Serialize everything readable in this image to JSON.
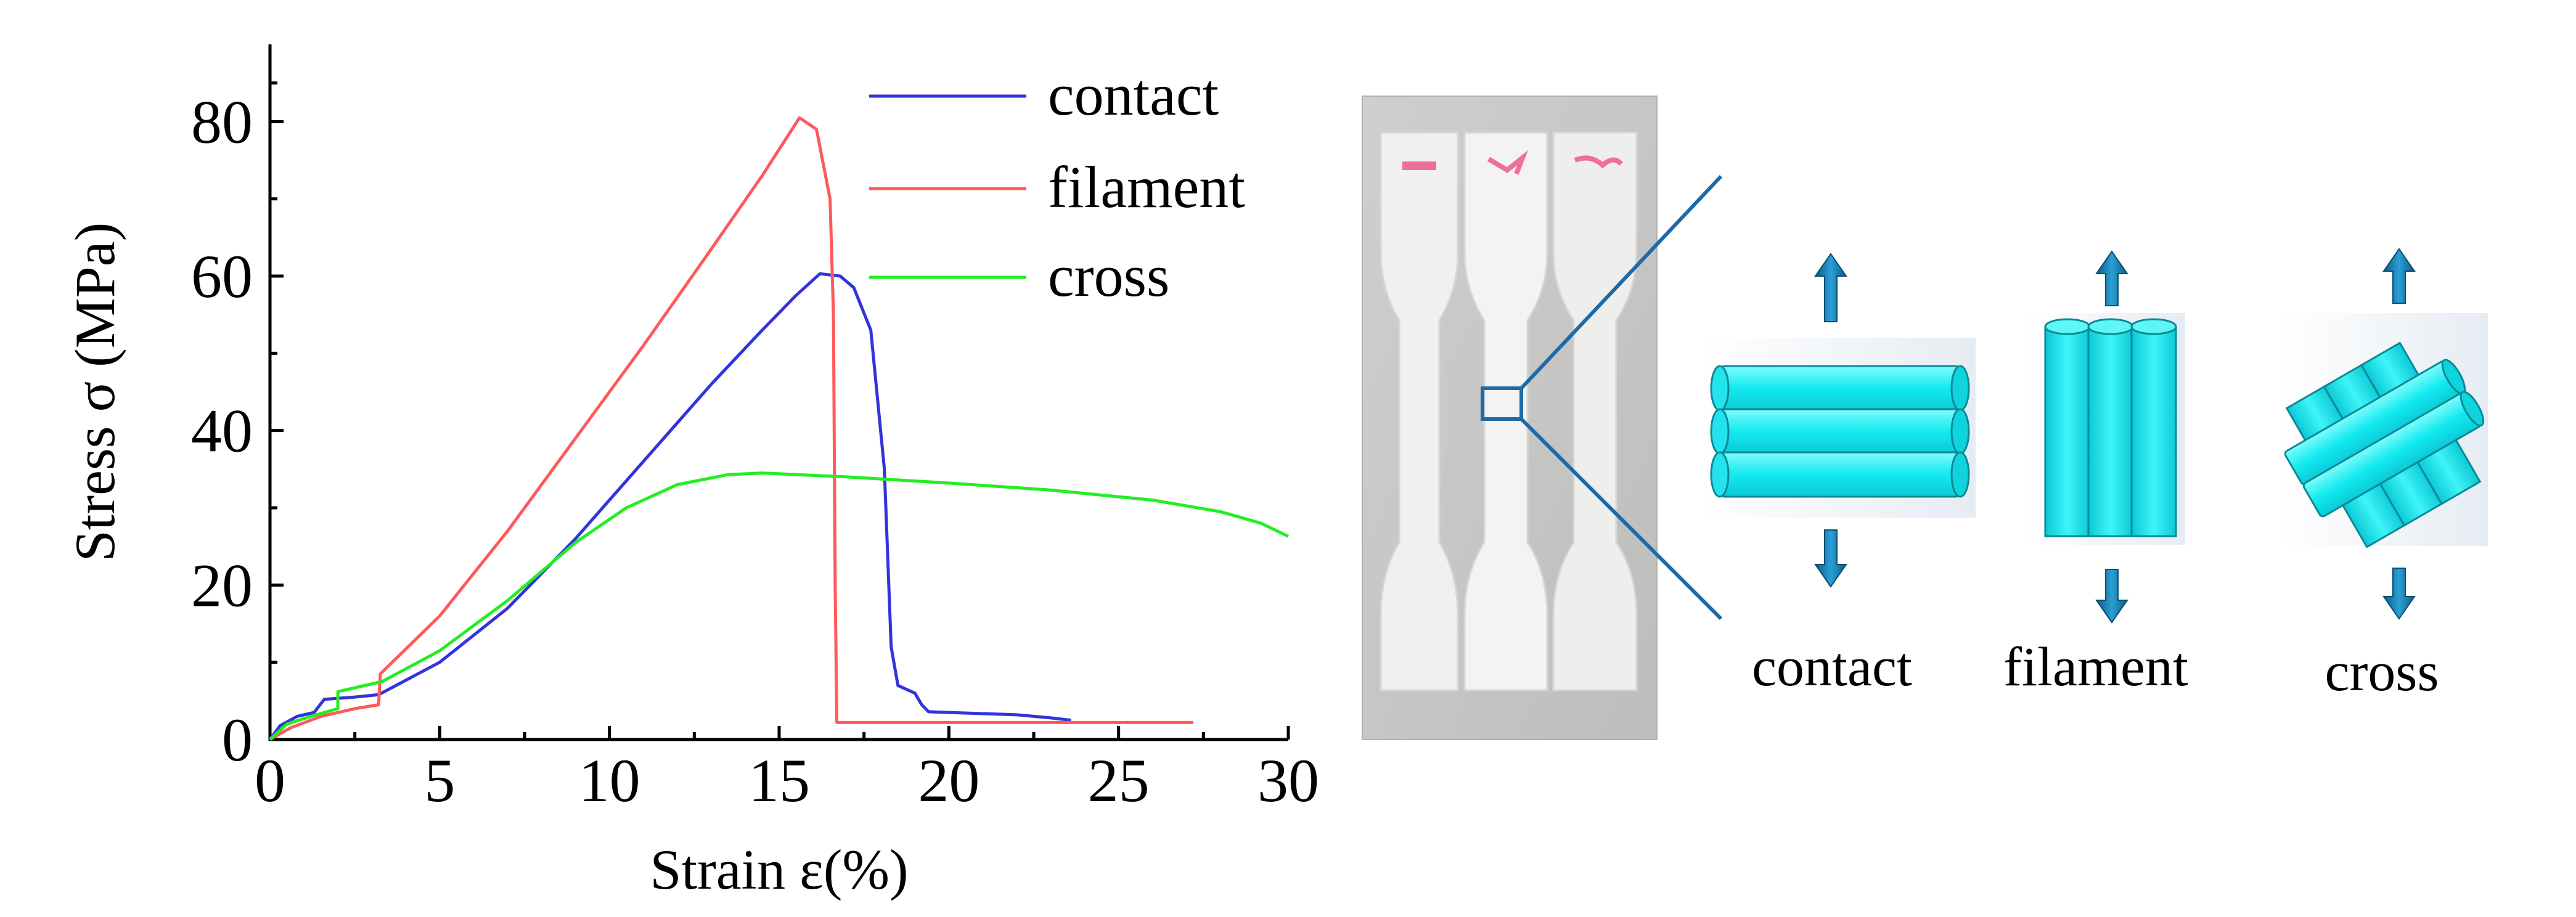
{
  "chart_data": {
    "type": "line",
    "title": "",
    "xlabel": "Strain ε(%)",
    "ylabel": "Stress σ (MPa)",
    "xlim": [
      0,
      30
    ],
    "ylim": [
      0,
      90
    ],
    "xticks": [
      0,
      5,
      10,
      15,
      20,
      25,
      30
    ],
    "yticks": [
      0,
      20,
      40,
      60,
      80
    ],
    "grid": false,
    "legend_position": "top-right",
    "series": [
      {
        "name": "contact",
        "color": "#3333dd",
        "points": [
          [
            0,
            0
          ],
          [
            0.3,
            1.8
          ],
          [
            0.8,
            3
          ],
          [
            1.3,
            3.5
          ],
          [
            1.6,
            5.2
          ],
          [
            2.5,
            5.5
          ],
          [
            3.2,
            5.8
          ],
          [
            5,
            10
          ],
          [
            7,
            17
          ],
          [
            9,
            26
          ],
          [
            11,
            36
          ],
          [
            13,
            46
          ],
          [
            14.5,
            53
          ],
          [
            15.5,
            57.5
          ],
          [
            16.2,
            60.3
          ],
          [
            16.8,
            60
          ],
          [
            17.2,
            58.5
          ],
          [
            17.7,
            53
          ],
          [
            18.1,
            35
          ],
          [
            18.3,
            12
          ],
          [
            18.5,
            7
          ],
          [
            19,
            6
          ],
          [
            19.2,
            4.5
          ],
          [
            19.4,
            3.6
          ],
          [
            20,
            3.5
          ],
          [
            22,
            3.2
          ],
          [
            23,
            2.8
          ],
          [
            23.6,
            2.5
          ]
        ]
      },
      {
        "name": "filament",
        "color": "#ff5a5a",
        "points": [
          [
            0,
            0
          ],
          [
            0.6,
            1.5
          ],
          [
            1.5,
            3
          ],
          [
            2.5,
            4
          ],
          [
            3.2,
            4.5
          ],
          [
            3.25,
            8.5
          ],
          [
            5,
            16
          ],
          [
            7,
            27
          ],
          [
            9,
            39
          ],
          [
            11,
            51
          ],
          [
            13,
            63.5
          ],
          [
            14.5,
            73
          ],
          [
            15.6,
            80.5
          ],
          [
            16.1,
            79
          ],
          [
            16.5,
            70
          ],
          [
            16.6,
            55
          ],
          [
            16.65,
            20
          ],
          [
            16.7,
            2.2
          ],
          [
            20,
            2.2
          ],
          [
            25,
            2.2
          ],
          [
            27.2,
            2.2
          ]
        ]
      },
      {
        "name": "cross",
        "color": "#22ee22",
        "points": [
          [
            0,
            0
          ],
          [
            0.5,
            2
          ],
          [
            1.2,
            3
          ],
          [
            2,
            4
          ],
          [
            2,
            6.2
          ],
          [
            3.3,
            7.5
          ],
          [
            5,
            11.5
          ],
          [
            7,
            18
          ],
          [
            9,
            25.5
          ],
          [
            10.5,
            30
          ],
          [
            12,
            33
          ],
          [
            13.5,
            34.3
          ],
          [
            14.5,
            34.5
          ],
          [
            17,
            34
          ],
          [
            20,
            33.2
          ],
          [
            23,
            32.3
          ],
          [
            26,
            31
          ],
          [
            28,
            29.5
          ],
          [
            29.2,
            28
          ],
          [
            30,
            26.3
          ]
        ]
      }
    ]
  },
  "diagram": {
    "labels": [
      "contact",
      "filament",
      "cross"
    ]
  }
}
